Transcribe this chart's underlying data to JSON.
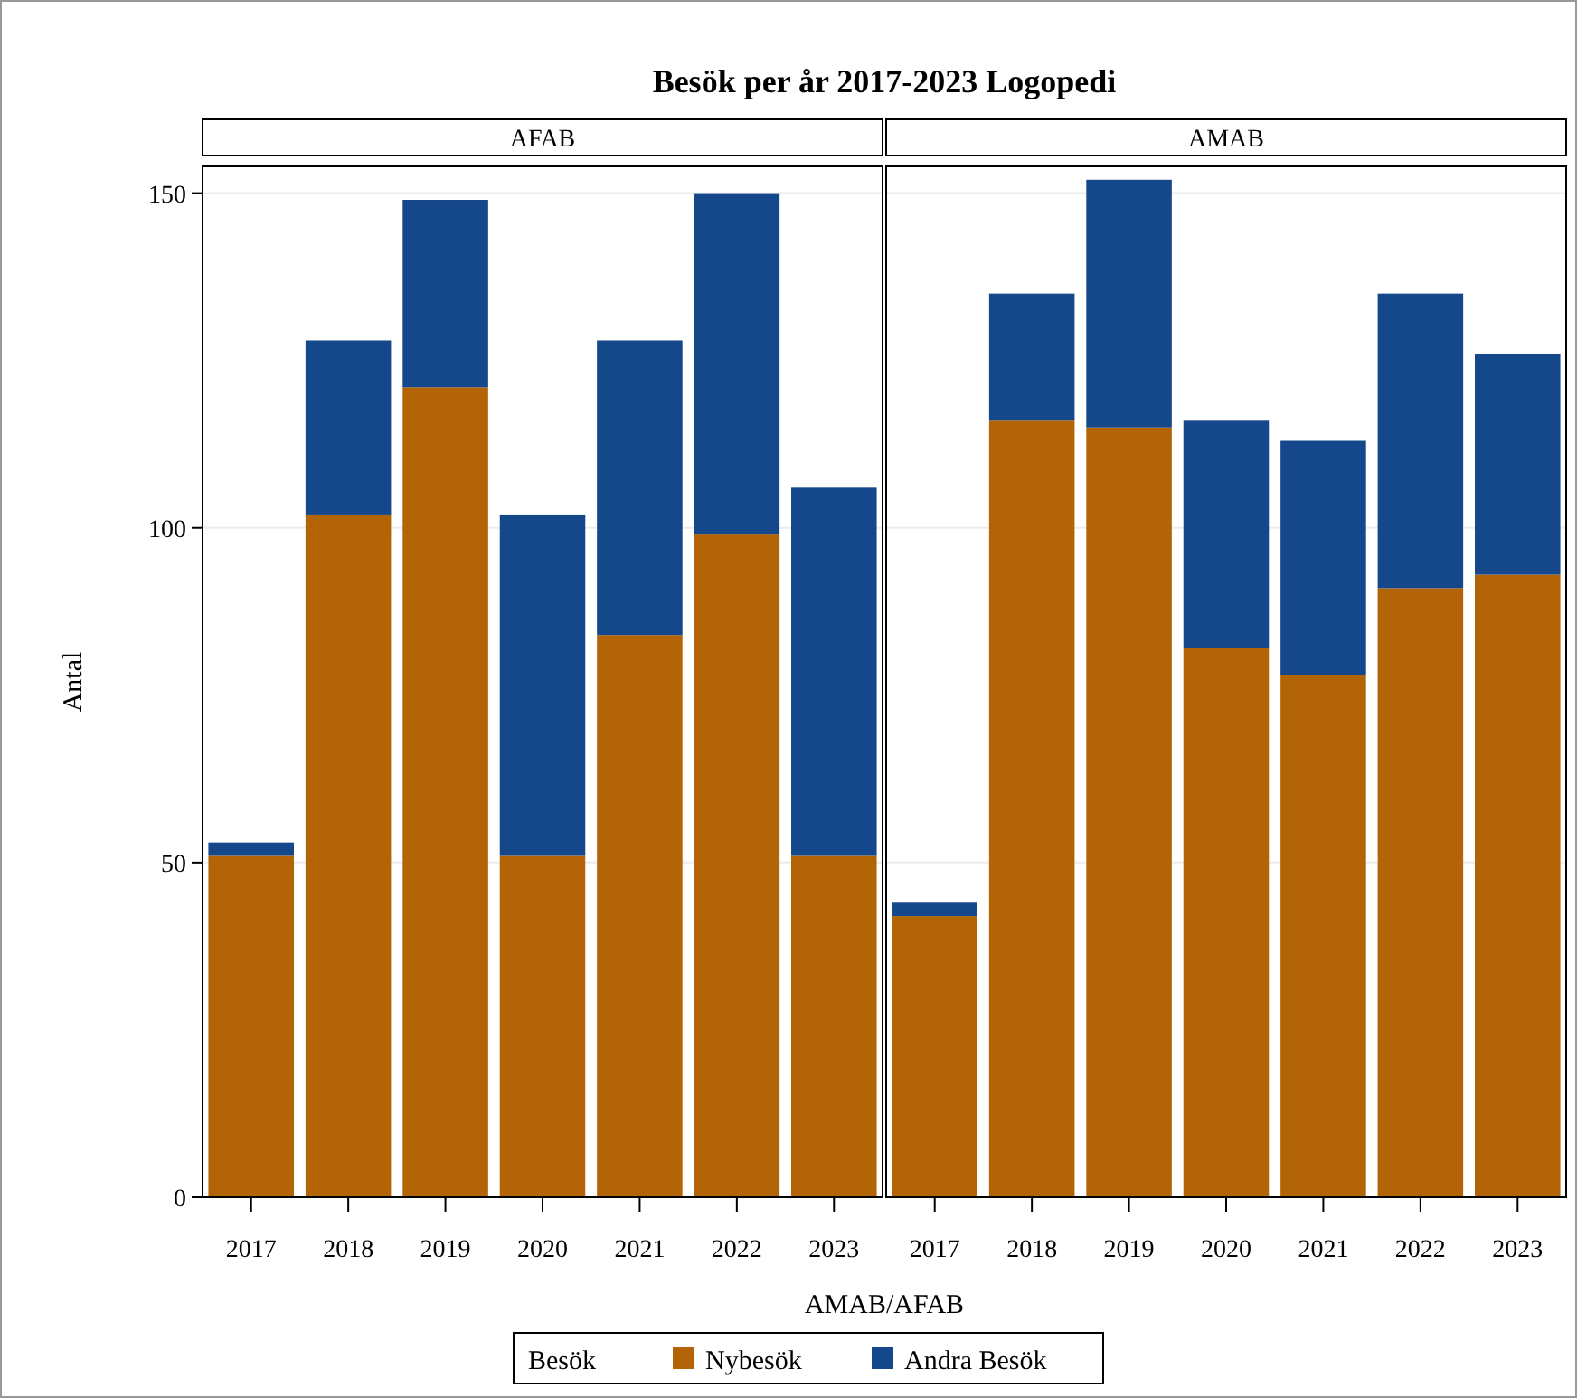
{
  "chart_data": [
    {
      "type": "bar",
      "title": "Besök per år 2017-2023 Logopedi",
      "subtitle": "AFAB",
      "ylabel": "Antal",
      "xlabel": "AMAB/AFAB",
      "legend_title": "Besök",
      "legend": "bottom",
      "stacked": true,
      "grid": "y",
      "ylim": [
        0,
        154
      ],
      "yticks": [
        0,
        50,
        100,
        150
      ],
      "categories": [
        "2017",
        "2018",
        "2019",
        "2020",
        "2021",
        "2022",
        "2023"
      ],
      "series": [
        {
          "name": "Nybesök",
          "color": "#b26406",
          "values": [
            51,
            102,
            121,
            51,
            84,
            99,
            51
          ]
        },
        {
          "name": "Andra Besök",
          "color": "#15478b",
          "values": [
            2,
            26,
            28,
            51,
            44,
            51,
            55
          ]
        }
      ]
    },
    {
      "type": "bar",
      "subtitle": "AMAB",
      "stacked": true,
      "grid": "y",
      "ylim": [
        0,
        154
      ],
      "yticks": [
        0,
        50,
        100,
        150
      ],
      "tick_labels": "x",
      "categories": [
        "2017",
        "2018",
        "2019",
        "2020",
        "2021",
        "2022",
        "2023"
      ],
      "series": [
        {
          "color": "#b26406",
          "values": [
            42,
            116,
            115,
            82,
            78,
            91,
            93
          ]
        },
        {
          "color": "#15478b",
          "values": [
            2,
            19,
            37,
            34,
            35,
            44,
            33
          ]
        }
      ]
    }
  ]
}
